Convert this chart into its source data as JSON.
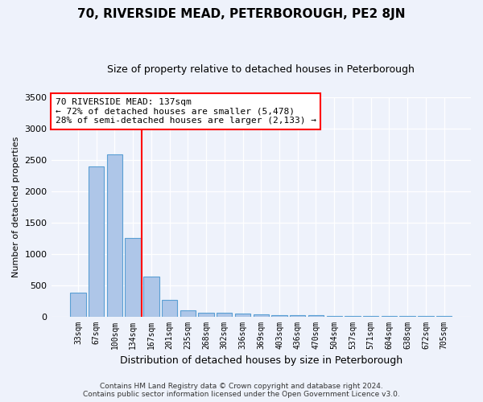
{
  "title": "70, RIVERSIDE MEAD, PETERBOROUGH, PE2 8JN",
  "subtitle": "Size of property relative to detached houses in Peterborough",
  "xlabel": "Distribution of detached houses by size in Peterborough",
  "ylabel": "Number of detached properties",
  "footer_line1": "Contains HM Land Registry data © Crown copyright and database right 2024.",
  "footer_line2": "Contains public sector information licensed under the Open Government Licence v3.0.",
  "categories": [
    "33sqm",
    "67sqm",
    "100sqm",
    "134sqm",
    "167sqm",
    "201sqm",
    "235sqm",
    "268sqm",
    "302sqm",
    "336sqm",
    "369sqm",
    "403sqm",
    "436sqm",
    "470sqm",
    "504sqm",
    "537sqm",
    "571sqm",
    "604sqm",
    "638sqm",
    "672sqm",
    "705sqm"
  ],
  "bar_values": [
    380,
    2390,
    2590,
    1250,
    640,
    260,
    95,
    60,
    55,
    40,
    30,
    25,
    20,
    15,
    12,
    10,
    8,
    6,
    5,
    4,
    3
  ],
  "bar_color": "#aec6e8",
  "bar_edge_color": "#5a9fd4",
  "vline_x": 3.5,
  "vline_color": "red",
  "ylim": [
    0,
    3500
  ],
  "yticks": [
    0,
    500,
    1000,
    1500,
    2000,
    2500,
    3000,
    3500
  ],
  "annotation_line1": "70 RIVERSIDE MEAD: 137sqm",
  "annotation_line2": "← 72% of detached houses are smaller (5,478)",
  "annotation_line3": "28% of semi-detached houses are larger (2,133) →",
  "annotation_box_color": "white",
  "annotation_box_edge_color": "red",
  "bg_color": "#eef2fb",
  "plot_bg_color": "#eef2fb",
  "title_fontsize": 11,
  "subtitle_fontsize": 9
}
